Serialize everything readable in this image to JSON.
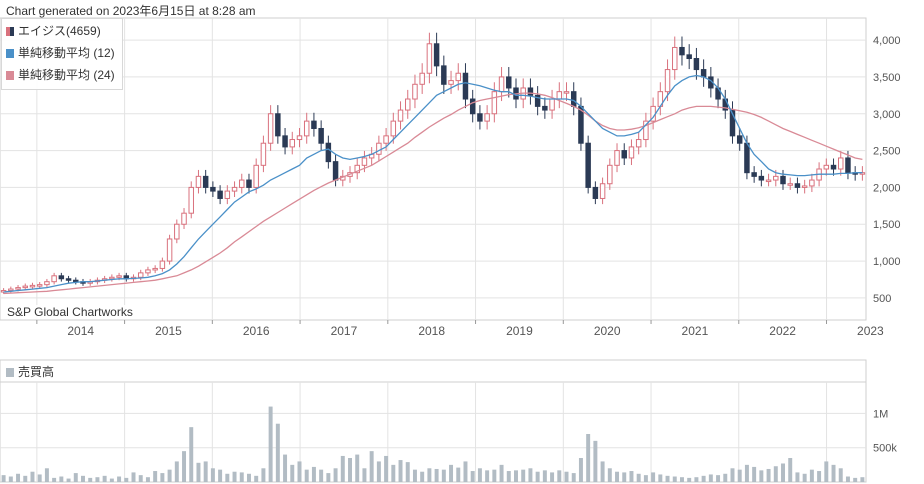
{
  "caption": "Chart generated on 2023年6月15日 at 8:28 am",
  "legend": {
    "items": [
      {
        "label": "エイジス(4659)",
        "color": "#2b3a55"
      },
      {
        "label": "単純移動平均 (12)",
        "color": "#4a90c8"
      },
      {
        "label": "単純移動平均 (24)",
        "color": "#d98a96"
      }
    ]
  },
  "watermark": "S&P Global Chartworks",
  "volume_panel": {
    "title": "売買高"
  },
  "colors": {
    "up": "#d9717d",
    "down": "#2b3a55",
    "sma12": "#4a90c8",
    "sma24": "#d98a96",
    "volume": "#b2bcc4",
    "grid": "#e3e3e3"
  },
  "chart_data": [
    {
      "type": "line",
      "subtype": "monthly candlestick with moving averages",
      "xlabel": "",
      "ylabel": "",
      "x_ticks": [
        "2014",
        "2015",
        "2016",
        "2017",
        "2018",
        "2019",
        "2020",
        "2021",
        "2022",
        "2023"
      ],
      "y_ticks": [
        "500",
        "1,000",
        "1,500",
        "2,000",
        "2,500",
        "3,000",
        "3,500",
        "4,000"
      ],
      "ylim": [
        200,
        4300
      ],
      "x_start": 2013.58,
      "x_end": 2023.45,
      "grid": true,
      "legend_position": "top-left",
      "close": [
        600,
        620,
        640,
        660,
        670,
        680,
        720,
        800,
        760,
        740,
        720,
        700,
        720,
        740,
        760,
        780,
        800,
        760,
        780,
        840,
        880,
        900,
        1000,
        1300,
        1500,
        1650,
        2000,
        2150,
        2000,
        1950,
        1850,
        1950,
        2000,
        2100,
        2000,
        2300,
        2600,
        3000,
        2700,
        2550,
        2650,
        2700,
        2900,
        2800,
        2600,
        2350,
        2100,
        2150,
        2200,
        2300,
        2400,
        2450,
        2600,
        2700,
        2900,
        3050,
        3200,
        3400,
        3550,
        3950,
        3650,
        3400,
        3450,
        3550,
        3200,
        3000,
        2900,
        3000,
        3300,
        3500,
        3350,
        3200,
        3350,
        3250,
        3100,
        3050,
        3200,
        3300,
        3300,
        3100,
        2600,
        2000,
        1850,
        2050,
        2300,
        2500,
        2400,
        2550,
        2650,
        2900,
        3100,
        3300,
        3600,
        3900,
        3800,
        3750,
        3600,
        3500,
        3350,
        3200,
        3050,
        2700,
        2600,
        2200,
        2150,
        2100,
        2100,
        2150,
        2050,
        2050,
        2000,
        2020,
        2100,
        2250,
        2300,
        2250,
        2400,
        2200,
        2180,
        2200
      ],
      "sma12": [
        580,
        590,
        600,
        610,
        620,
        630,
        640,
        660,
        680,
        700,
        710,
        720,
        720,
        730,
        740,
        750,
        760,
        760,
        765,
        770,
        780,
        800,
        830,
        880,
        960,
        1060,
        1180,
        1300,
        1400,
        1500,
        1600,
        1700,
        1800,
        1870,
        1940,
        1980,
        2030,
        2100,
        2150,
        2200,
        2250,
        2300,
        2400,
        2450,
        2500,
        2520,
        2450,
        2400,
        2380,
        2400,
        2420,
        2450,
        2500,
        2550,
        2650,
        2750,
        2850,
        2950,
        3050,
        3150,
        3250,
        3300,
        3350,
        3400,
        3420,
        3400,
        3380,
        3350,
        3320,
        3300,
        3300,
        3250,
        3250,
        3240,
        3220,
        3200,
        3200,
        3200,
        3200,
        3180,
        3100,
        3000,
        2900,
        2800,
        2750,
        2700,
        2700,
        2720,
        2750,
        2850,
        2950,
        3100,
        3250,
        3380,
        3450,
        3500,
        3520,
        3500,
        3450,
        3350,
        3200,
        3000,
        2800,
        2600,
        2450,
        2350,
        2250,
        2200,
        2180,
        2170,
        2160,
        2160,
        2170,
        2180,
        2180,
        2180,
        2190,
        2190,
        2200,
        2200
      ],
      "sma24": [
        560,
        565,
        570,
        575,
        580,
        585,
        590,
        600,
        610,
        620,
        630,
        640,
        650,
        660,
        670,
        680,
        690,
        700,
        710,
        720,
        730,
        740,
        760,
        780,
        800,
        840,
        880,
        930,
        990,
        1050,
        1110,
        1180,
        1260,
        1330,
        1400,
        1470,
        1540,
        1600,
        1660,
        1720,
        1780,
        1840,
        1900,
        1960,
        2010,
        2060,
        2100,
        2140,
        2180,
        2220,
        2260,
        2300,
        2360,
        2420,
        2480,
        2540,
        2600,
        2680,
        2750,
        2820,
        2880,
        2940,
        2990,
        3050,
        3100,
        3150,
        3180,
        3200,
        3220,
        3240,
        3260,
        3270,
        3280,
        3280,
        3270,
        3250,
        3220,
        3180,
        3140,
        3100,
        3050,
        2980,
        2900,
        2840,
        2800,
        2780,
        2780,
        2790,
        2810,
        2840,
        2880,
        2920,
        2960,
        3000,
        3050,
        3080,
        3100,
        3100,
        3100,
        3090,
        3080,
        3060,
        3040,
        3020,
        2990,
        2950,
        2900,
        2850,
        2800,
        2760,
        2720,
        2680,
        2640,
        2600,
        2560,
        2520,
        2480,
        2440,
        2400,
        2380
      ]
    },
    {
      "type": "bar",
      "title": "売買高",
      "y_ticks": [
        "500k",
        "1M"
      ],
      "ylim": [
        0,
        1400000
      ],
      "values": [
        100000,
        80000,
        120000,
        90000,
        150000,
        110000,
        200000,
        60000,
        80000,
        50000,
        130000,
        90000,
        60000,
        70000,
        90000,
        50000,
        80000,
        60000,
        140000,
        100000,
        70000,
        160000,
        130000,
        180000,
        300000,
        450000,
        800000,
        280000,
        300000,
        200000,
        180000,
        120000,
        150000,
        140000,
        120000,
        90000,
        200000,
        1100000,
        850000,
        400000,
        250000,
        300000,
        180000,
        220000,
        180000,
        130000,
        200000,
        380000,
        350000,
        400000,
        200000,
        450000,
        300000,
        380000,
        250000,
        320000,
        290000,
        180000,
        150000,
        200000,
        190000,
        180000,
        250000,
        210000,
        300000,
        160000,
        200000,
        170000,
        180000,
        250000,
        160000,
        170000,
        180000,
        200000,
        150000,
        170000,
        140000,
        170000,
        150000,
        130000,
        350000,
        700000,
        600000,
        300000,
        200000,
        150000,
        140000,
        160000,
        120000,
        100000,
        140000,
        110000,
        90000,
        80000,
        70000,
        60000,
        70000,
        90000,
        110000,
        100000,
        120000,
        200000,
        180000,
        250000,
        220000,
        170000,
        190000,
        230000,
        270000,
        350000,
        140000,
        120000,
        180000,
        160000,
        300000,
        250000,
        200000,
        80000,
        60000,
        70000
      ]
    }
  ]
}
